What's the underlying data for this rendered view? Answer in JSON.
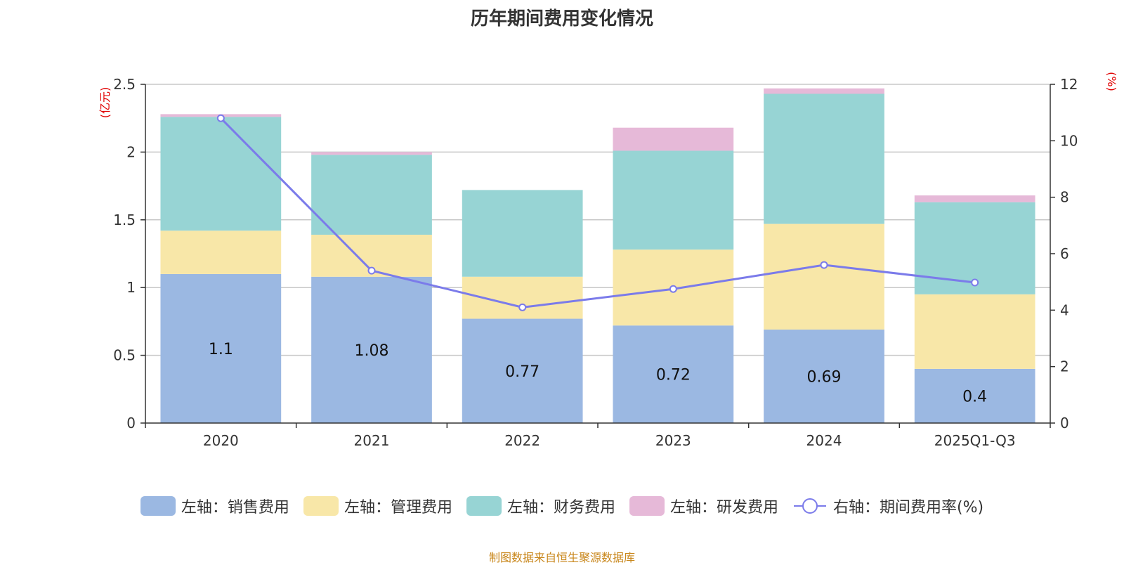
{
  "chart_data": {
    "type": "bar",
    "title": "历年期间费用变化情况",
    "categories": [
      "2020",
      "2021",
      "2022",
      "2023",
      "2024",
      "2025Q1-Q3"
    ],
    "stacked": true,
    "series": [
      {
        "name": "左轴：销售费用",
        "axis": "left",
        "color": "#9bb8e2",
        "values": [
          1.1,
          1.08,
          0.77,
          0.72,
          0.69,
          0.4
        ],
        "labels": [
          "1.1",
          "1.08",
          "0.77",
          "0.72",
          "0.69",
          "0.4"
        ]
      },
      {
        "name": "左轴：管理费用",
        "axis": "left",
        "color": "#f8e7a8",
        "values": [
          0.32,
          0.31,
          0.31,
          0.56,
          0.78,
          0.55
        ]
      },
      {
        "name": "左轴：财务费用",
        "axis": "left",
        "color": "#97d4d4",
        "values": [
          0.84,
          0.59,
          0.64,
          0.73,
          0.96,
          0.68
        ]
      },
      {
        "name": "左轴：研发费用",
        "axis": "left",
        "color": "#e6b9d8",
        "values": [
          0.02,
          0.02,
          0.0,
          0.17,
          0.04,
          0.05
        ]
      }
    ],
    "line_series": {
      "name": "右轴：期间费用率(%)",
      "axis": "right",
      "color": "#7b7bea",
      "values": [
        10.8,
        5.4,
        4.1,
        4.75,
        5.6,
        4.98
      ]
    },
    "y_left": {
      "label": "(亿元)",
      "min": 0,
      "max": 2.5,
      "ticks": [
        "0",
        "0.5",
        "1",
        "1.5",
        "2",
        "2.5"
      ]
    },
    "y_right": {
      "label": "(%)",
      "min": 0,
      "max": 12,
      "ticks": [
        "0",
        "2",
        "4",
        "6",
        "8",
        "10",
        "12"
      ]
    },
    "grid": true,
    "legend_position": "bottom"
  },
  "source_note": "制图数据来自恒生聚源数据库"
}
